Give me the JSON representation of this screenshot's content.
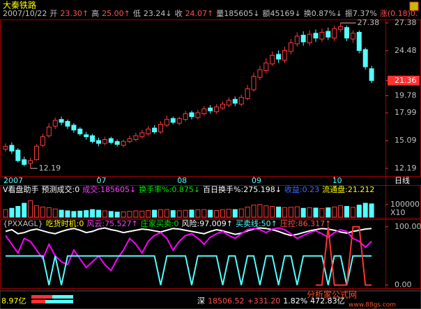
{
  "title": "大秦铁路",
  "quote_bar": {
    "items": [
      {
        "text": "2007/10/22",
        "color": "#c0c0c0"
      },
      {
        "text": "开",
        "color": "#c0c0c0"
      },
      {
        "text": "23.30↑",
        "color": "#ff5050"
      },
      {
        "text": "高",
        "color": "#c0c0c0"
      },
      {
        "text": "25.00↑",
        "color": "#ff5050"
      },
      {
        "text": "低",
        "color": "#c0c0c0"
      },
      {
        "text": "23.24↓",
        "color": "#c0c0c0"
      },
      {
        "text": "收",
        "color": "#c0c0c0"
      },
      {
        "text": "24.07↑",
        "color": "#ff5050"
      },
      {
        "text": "量185605↓",
        "color": "#c0c0c0"
      },
      {
        "text": "额45169↓",
        "color": "#c0c0c0"
      },
      {
        "text": "换0.87%↓",
        "color": "#c0c0c0"
      },
      {
        "text": "振7.37%",
        "color": "#c0c0c0"
      },
      {
        "text": "涨(0.18)0.",
        "color": "#ff5050"
      }
    ]
  },
  "status_bar": {
    "items": [
      {
        "text": "深",
        "color": "#ffffff"
      },
      {
        "text": "18506.52",
        "color": "#ff5050"
      },
      {
        "text": "+331.20",
        "color": "#ff5050"
      },
      {
        "text": "1.82%",
        "color": "#ffffff"
      },
      {
        "text": "472.83亿",
        "color": "#ffffff"
      }
    ],
    "turnover": "8.97亿",
    "watermark": "分析家公式网",
    "watermark_url": "www.88gs.com"
  },
  "chart_data": [
    {
      "type": "candlestick",
      "period_label": "日线",
      "high_label": "27.38",
      "low_label": "12.19",
      "up_color": "#ff3c3c",
      "down_color": "#54ffff",
      "categories": [
        "2007",
        null,
        null,
        null,
        null,
        null,
        null,
        null,
        null,
        null,
        null,
        null,
        null,
        null,
        null,
        "07",
        null,
        null,
        null,
        null,
        null,
        null,
        null,
        null,
        null,
        null,
        null,
        null,
        "08",
        null,
        null,
        null,
        null,
        null,
        null,
        null,
        null,
        null,
        null,
        null,
        "09",
        null,
        null,
        null,
        null,
        null,
        null,
        null,
        null,
        null,
        null,
        null,
        null,
        "10",
        null,
        null,
        null,
        null,
        null,
        null
      ],
      "open": [
        14.2,
        14.6,
        14.1,
        13.1,
        12.7,
        13.1,
        14.6,
        15.6,
        16.6,
        17.3,
        17.1,
        16.7,
        16.3,
        15.7,
        15.6,
        15.1,
        14.8,
        15.3,
        15.0,
        14.6,
        15.0,
        15.2,
        15.5,
        15.8,
        16.4,
        16.0,
        16.7,
        17.4,
        16.9,
        17.3,
        18.0,
        17.5,
        17.9,
        18.5,
        18.1,
        18.5,
        18.8,
        19.4,
        18.9,
        19.5,
        20.4,
        21.7,
        22.4,
        23.1,
        24.1,
        23.5,
        24.4,
        25.2,
        26.1,
        25.3,
        26.3,
        25.7,
        26.5,
        25.8,
        26.7,
        26.9,
        25.7,
        26.4,
        24.6,
        22.6
      ],
      "high": [
        14.8,
        14.9,
        14.3,
        13.4,
        13.3,
        14.7,
        15.8,
        16.9,
        17.5,
        17.6,
        17.3,
        16.9,
        16.5,
        16.0,
        15.8,
        15.4,
        15.5,
        15.5,
        15.2,
        15.2,
        15.6,
        15.9,
        16.2,
        16.6,
        16.7,
        17.1,
        17.7,
        17.6,
        17.6,
        18.2,
        18.2,
        18.3,
        18.7,
        18.8,
        18.9,
        19.2,
        19.6,
        19.7,
        19.9,
        20.9,
        22.2,
        22.9,
        23.7,
        24.4,
        24.5,
        24.9,
        25.7,
        26.4,
        26.5,
        26.6,
        26.7,
        26.8,
        26.9,
        27.1,
        27.38,
        27.1,
        26.6,
        26.6,
        24.8,
        22.9
      ],
      "low": [
        13.9,
        13.7,
        12.8,
        12.4,
        12.19,
        13.0,
        14.4,
        15.4,
        16.3,
        16.7,
        16.3,
        15.9,
        15.6,
        15.2,
        14.8,
        14.5,
        14.6,
        14.7,
        14.5,
        14.4,
        14.8,
        15.0,
        15.3,
        15.6,
        15.8,
        15.8,
        16.5,
        16.8,
        16.7,
        17.1,
        17.3,
        17.3,
        17.7,
        17.9,
        17.9,
        18.3,
        18.6,
        18.7,
        18.7,
        19.3,
        20.2,
        21.4,
        22.1,
        22.9,
        23.2,
        23.2,
        24.1,
        24.9,
        25.0,
        25.0,
        25.4,
        25.4,
        25.6,
        25.5,
        26.4,
        25.5,
        25.3,
        24.2,
        22.5,
        21.1
      ],
      "close": [
        14.5,
        14.0,
        13.0,
        12.6,
        13.0,
        14.5,
        15.5,
        16.5,
        17.2,
        17.0,
        16.6,
        16.2,
        15.8,
        15.5,
        15.0,
        14.8,
        15.2,
        14.9,
        14.7,
        15.0,
        15.3,
        15.6,
        15.9,
        16.3,
        16.0,
        16.8,
        17.3,
        17.0,
        17.4,
        17.9,
        17.6,
        18.0,
        18.4,
        18.2,
        18.6,
        18.9,
        19.3,
        19.0,
        19.6,
        20.5,
        21.8,
        22.5,
        23.2,
        24.0,
        23.6,
        24.5,
        25.3,
        26.0,
        25.4,
        26.2,
        25.8,
        26.4,
        25.9,
        26.8,
        27.0,
        25.8,
        26.3,
        24.5,
        22.8,
        21.36
      ],
      "ylim": [
        11.46,
        27.74
      ],
      "yticks": [
        12.19,
        15.09,
        17.99,
        19.78,
        21.36,
        24.48,
        27.38
      ]
    },
    {
      "type": "bar",
      "header": {
        "items": [
          {
            "text": "V看盘助手",
            "color": "#ffffff"
          },
          {
            "text": "预测成交:0",
            "color": "#ffffff"
          },
          {
            "text": "成交:185605↓",
            "color": "#ff40ff"
          },
          {
            "text": "换手率%:0.875↓",
            "color": "#00e600"
          },
          {
            "text": "百日换手%:275.198↓",
            "color": "#ffffff"
          },
          {
            "text": "收益:0.23",
            "color": "#3c6cff"
          },
          {
            "text": "流通盘:21.212",
            "color": "#ffff00"
          }
        ]
      },
      "unit_label": "X10",
      "values": [
        60000,
        70000,
        85000,
        110000,
        130000,
        90000,
        80000,
        75000,
        65000,
        55000,
        50000,
        45000,
        48000,
        52000,
        60000,
        55000,
        50000,
        45000,
        40000,
        42000,
        46000,
        50000,
        48000,
        52000,
        55000,
        58000,
        60000,
        52000,
        50000,
        54000,
        56000,
        58000,
        60000,
        55000,
        52000,
        58000,
        62000,
        60000,
        65000,
        80000,
        95000,
        100000,
        90000,
        85000,
        80000,
        75000,
        78000,
        82000,
        70000,
        75000,
        72000,
        68000,
        74000,
        80000,
        90000,
        85000,
        78000,
        95000,
        110000,
        105000
      ],
      "ylim": [
        0,
        176000
      ],
      "yticks": [
        100000
      ]
    },
    {
      "type": "line",
      "header": {
        "items": [
          {
            "text": "{PXXAGL}",
            "color": "#c0c0c0"
          },
          {
            "text": "吃货时机:0",
            "color": "#ffff00"
          },
          {
            "text": "风云:75.527↑",
            "color": "#ff40ff"
          },
          {
            "text": "庄家买卖:0",
            "color": "#00e600"
          },
          {
            "text": "风险:97.009↑",
            "color": "#ffffff"
          },
          {
            "text": "买卖线:50↑",
            "color": "#54ffff"
          },
          {
            "text": "压控:86.317↑",
            "color": "#ff5050"
          }
        ]
      },
      "series": [
        {
          "color": "#ffffff",
          "values": [
            92,
            95,
            88,
            90,
            94,
            96,
            93,
            90,
            88,
            92,
            95,
            97,
            94,
            90,
            92,
            96,
            98,
            95,
            93,
            90,
            92,
            94,
            96,
            95,
            93,
            91,
            94,
            97,
            96,
            94,
            92,
            90,
            88,
            92,
            95,
            93,
            90,
            87,
            89,
            93,
            96,
            98,
            97,
            95,
            92,
            88,
            85,
            87,
            90,
            93,
            95,
            97,
            96,
            94,
            91,
            89,
            92,
            94,
            96,
            97
          ]
        },
        {
          "color": "#ff00ff",
          "values": [
            85,
            70,
            55,
            80,
            75,
            60,
            45,
            70,
            50,
            40,
            35,
            60,
            45,
            30,
            40,
            50,
            35,
            25,
            45,
            60,
            80,
            70,
            55,
            75,
            85,
            90,
            80,
            60,
            75,
            85,
            88,
            80,
            70,
            82,
            88,
            92,
            85,
            80,
            88,
            95,
            97,
            95,
            90,
            96,
            98,
            95,
            88,
            80,
            85,
            90,
            93,
            88,
            82,
            90,
            95,
            92,
            80,
            75,
            65,
            75
          ]
        },
        {
          "color": "#54ffff",
          "values": [
            50,
            50,
            50,
            50,
            50,
            50,
            50,
            0,
            50,
            0,
            50,
            50,
            50,
            50,
            50,
            50,
            50,
            50,
            50,
            50,
            50,
            50,
            50,
            50,
            50,
            0,
            50,
            50,
            50,
            50,
            0,
            50,
            50,
            50,
            50,
            0,
            50,
            50,
            0,
            50,
            50,
            0,
            50,
            50,
            0,
            50,
            50,
            0,
            50,
            50,
            50,
            50,
            0,
            50,
            50,
            0,
            50,
            50,
            50,
            50
          ]
        },
        {
          "color": "#ff3232",
          "values": [
            null,
            null,
            null,
            null,
            null,
            null,
            null,
            null,
            null,
            null,
            null,
            null,
            null,
            null,
            null,
            null,
            null,
            null,
            null,
            null,
            null,
            null,
            null,
            null,
            null,
            null,
            null,
            null,
            null,
            null,
            null,
            null,
            null,
            null,
            null,
            null,
            null,
            null,
            null,
            null,
            null,
            null,
            null,
            null,
            null,
            null,
            null,
            null,
            null,
            null,
            0,
            0,
            100,
            0,
            0,
            0,
            100,
            100,
            0,
            0
          ]
        }
      ],
      "ylim": [
        -5.2,
        111.7
      ],
      "yticks": [
        {
          "value": 100,
          "label": "100.00"
        },
        {
          "value": 0,
          "label": "0.00"
        }
      ]
    }
  ]
}
